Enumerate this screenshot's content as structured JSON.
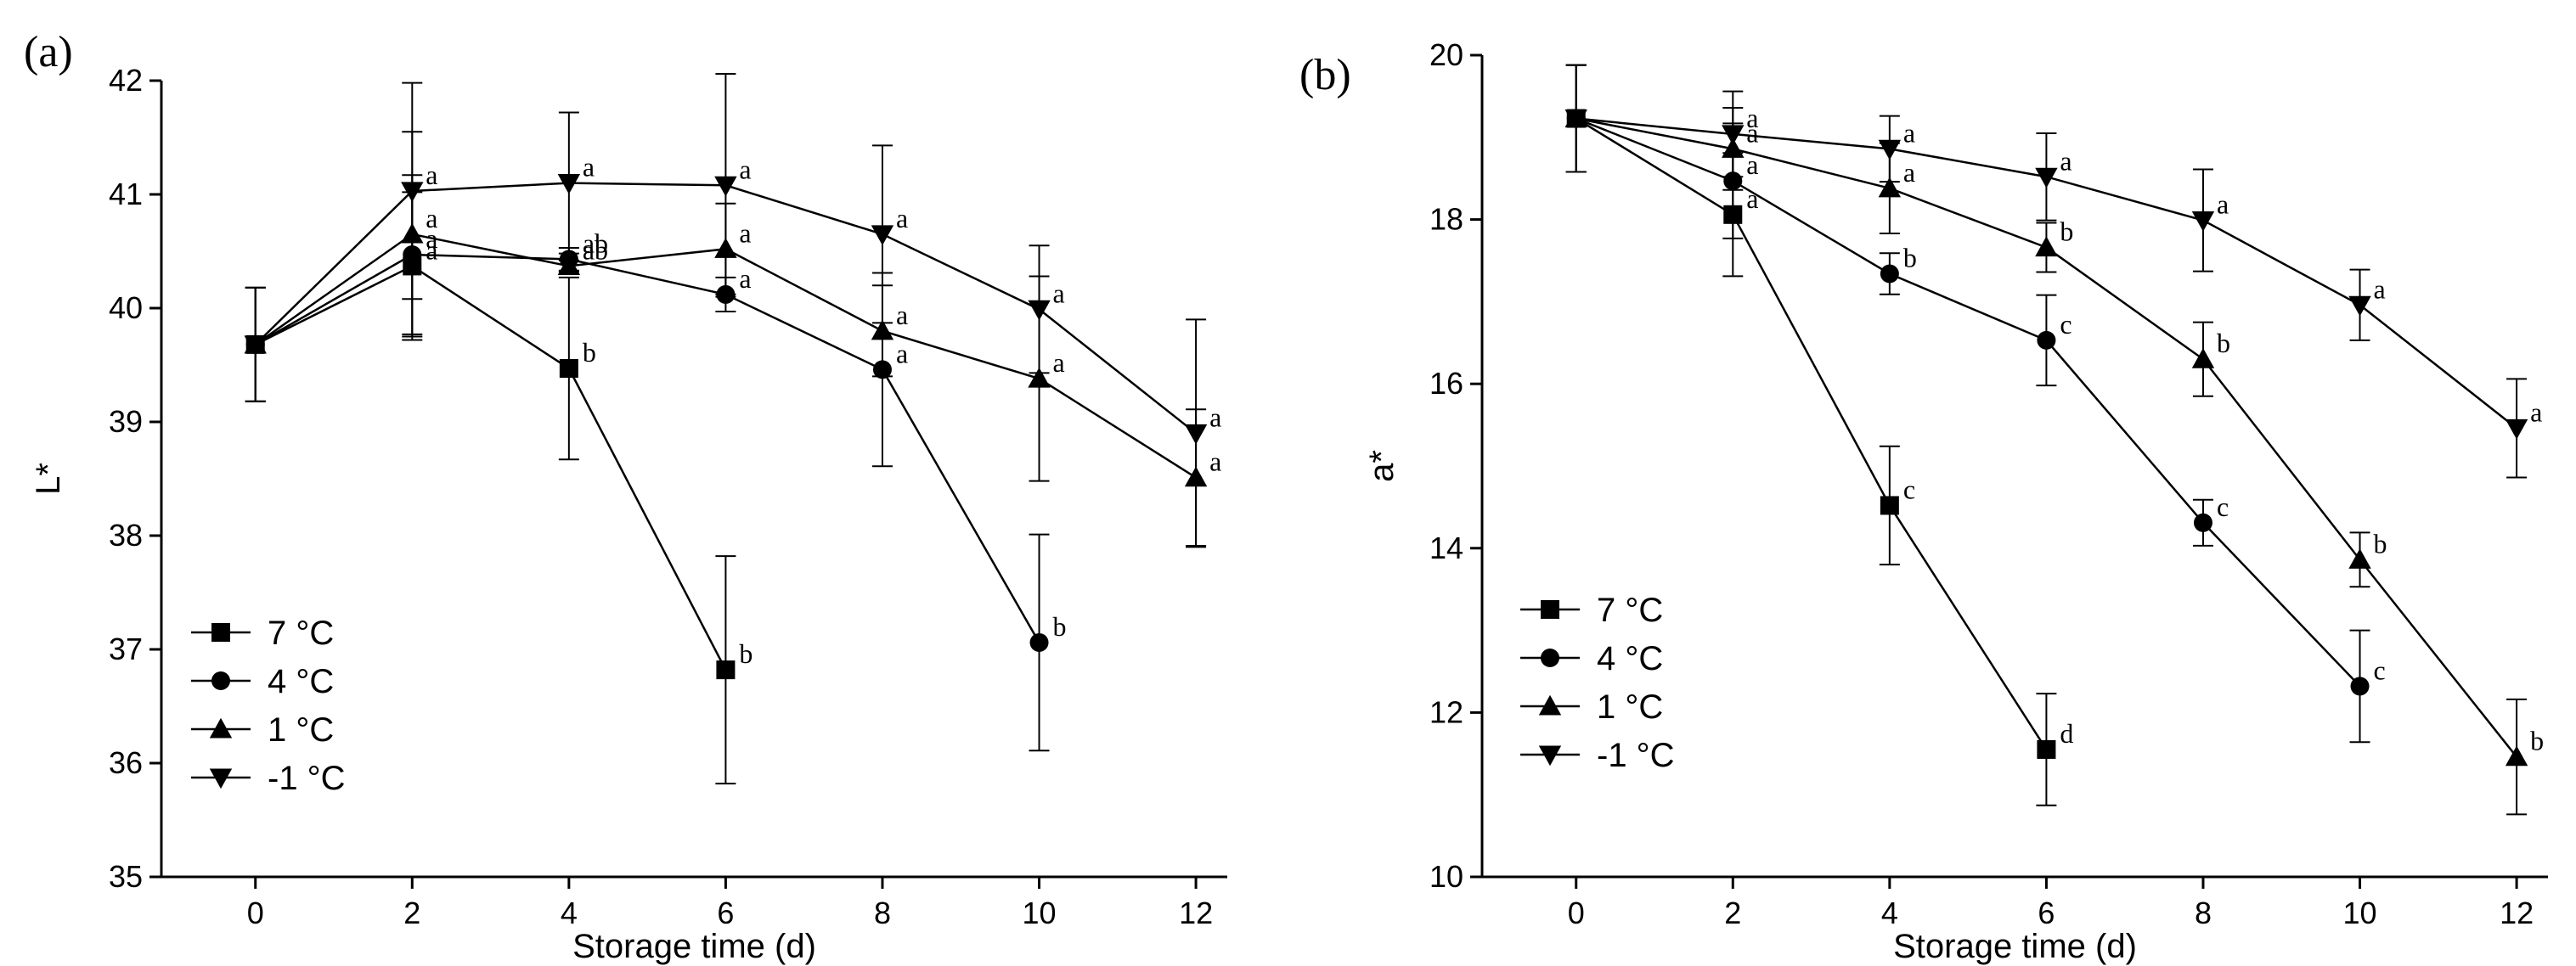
{
  "chart_data": [
    {
      "type": "line",
      "panel_label": "(a)",
      "xlabel": "Storage time (d)",
      "ylabel": "L*",
      "xlim": [
        -1.2,
        12.4
      ],
      "ylim": [
        35,
        42
      ],
      "x_ticks": [
        0,
        2,
        4,
        6,
        8,
        10,
        12
      ],
      "x_tick_labels": [
        "0",
        "2",
        "4",
        "6",
        "8",
        "10",
        "12"
      ],
      "y_ticks": [
        35,
        36,
        37,
        38,
        39,
        40,
        41,
        42
      ],
      "y_tick_labels": [
        "35",
        "36",
        "37",
        "38",
        "39",
        "40",
        "41",
        "42"
      ],
      "legend_position": "bottom-left",
      "series": [
        {
          "name": "7 °C",
          "marker": "square",
          "x": [
            0,
            2,
            4,
            6
          ],
          "y": [
            39.68,
            40.37,
            39.47,
            36.82
          ],
          "err": [
            0.5,
            0.65,
            0.8,
            1.0
          ],
          "letters": [
            "",
            "a",
            "b",
            "b"
          ]
        },
        {
          "name": "4 °C",
          "marker": "circle",
          "x": [
            0,
            2,
            4,
            6,
            8,
            10
          ],
          "y": [
            39.68,
            40.47,
            40.43,
            40.12,
            39.46,
            37.06
          ],
          "err": [
            0.5,
            0.7,
            0.1,
            0.15,
            0.85,
            0.95
          ],
          "letters": [
            "",
            "a",
            "ab",
            "a",
            "a",
            "b"
          ]
        },
        {
          "name": "1 °C",
          "marker": "triangle-up",
          "x": [
            0,
            2,
            4,
            6,
            8,
            10,
            12
          ],
          "y": [
            39.68,
            40.65,
            40.37,
            40.52,
            39.8,
            39.38,
            38.51
          ],
          "err": [
            0.5,
            0.9,
            0.05,
            0.4,
            0.4,
            0.9,
            0.6
          ],
          "letters": [
            "",
            "a",
            "ab",
            "a",
            "a",
            "a",
            "a"
          ]
        },
        {
          "name": "-1 °C",
          "marker": "triangle-down",
          "x": [
            0,
            2,
            4,
            6,
            8,
            10,
            12
          ],
          "y": [
            39.68,
            41.03,
            41.1,
            41.08,
            40.65,
            39.99,
            38.9
          ],
          "err": [
            0.5,
            0.95,
            0.62,
            0.98,
            0.78,
            0.56,
            1.0
          ],
          "letters": [
            "",
            "a",
            "a",
            "a",
            "a",
            "a",
            "a"
          ]
        }
      ]
    },
    {
      "type": "line",
      "panel_label": "(b)",
      "xlabel": "Storage time (d)",
      "ylabel": "a*",
      "xlim": [
        -1.2,
        12.4
      ],
      "ylim": [
        10,
        20
      ],
      "x_ticks": [
        0,
        2,
        4,
        6,
        8,
        10,
        12
      ],
      "x_tick_labels": [
        "0",
        "2",
        "4",
        "6",
        "8",
        "10",
        "12"
      ],
      "y_ticks": [
        10,
        12,
        14,
        16,
        18,
        20
      ],
      "y_tick_labels": [
        "10",
        "12",
        "14",
        "16",
        "18",
        "20"
      ],
      "legend_position": "bottom-left",
      "series": [
        {
          "name": "7 °C",
          "marker": "square",
          "x": [
            0,
            2,
            4,
            6
          ],
          "y": [
            19.23,
            18.06,
            14.52,
            11.55
          ],
          "err": [
            0.65,
            0.75,
            0.72,
            0.68
          ],
          "letters": [
            "",
            "a",
            "c",
            "d"
          ]
        },
        {
          "name": "4 °C",
          "marker": "circle",
          "x": [
            0,
            2,
            4,
            6,
            8,
            10
          ],
          "y": [
            19.23,
            18.47,
            17.34,
            16.53,
            14.31,
            12.32
          ],
          "err": [
            0.65,
            0.7,
            0.25,
            0.55,
            0.28,
            0.68
          ],
          "letters": [
            "",
            "a",
            "b",
            "c",
            "c",
            "c"
          ]
        },
        {
          "name": "1 °C",
          "marker": "triangle-up",
          "x": [
            0,
            2,
            4,
            6,
            8,
            10,
            12
          ],
          "y": [
            19.23,
            18.86,
            18.38,
            17.66,
            16.3,
            13.86,
            11.46
          ],
          "err": [
            0.65,
            0.5,
            0.55,
            0.3,
            0.45,
            0.33,
            0.7
          ],
          "letters": [
            "",
            "a",
            "a",
            "b",
            "b",
            "b",
            "b"
          ]
        },
        {
          "name": "-1 °C",
          "marker": "triangle-down",
          "x": [
            0,
            2,
            4,
            6,
            8,
            10,
            12
          ],
          "y": [
            19.23,
            19.04,
            18.86,
            18.52,
            17.99,
            16.96,
            15.46
          ],
          "err": [
            0.65,
            0.52,
            0.4,
            0.53,
            0.62,
            0.43,
            0.6
          ],
          "letters": [
            "",
            "a",
            "a",
            "a",
            "a",
            "a",
            "a"
          ]
        }
      ]
    }
  ]
}
